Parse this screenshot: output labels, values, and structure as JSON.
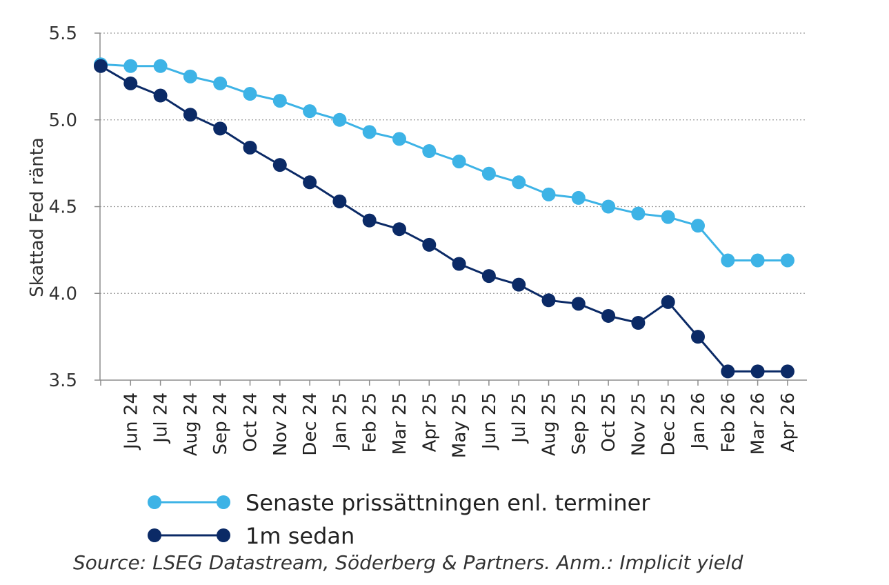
{
  "chart_data": {
    "type": "line",
    "title": "",
    "xlabel": "",
    "ylabel": "Skattad Fed ränta",
    "ylim": [
      3.5,
      5.5
    ],
    "yticks": [
      "5.5",
      "5.0",
      "4.5",
      "4.0",
      "3.5"
    ],
    "grid": true,
    "legend_position": "bottom",
    "categories": [
      "",
      "Jun 24",
      "Jul 24",
      "Aug 24",
      "Sep 24",
      "Oct 24",
      "Nov 24",
      "Dec 24",
      "Jan 25",
      "Feb 25",
      "Mar 25",
      "Apr 25",
      "May 25",
      "Jun 25",
      "Jul 25",
      "Aug 25",
      "Sep 25",
      "Oct 25",
      "Nov 25",
      "Dec 25",
      "Jan 26",
      "Feb 26",
      "Mar 26",
      "Apr 26"
    ],
    "series": [
      {
        "name": "Senaste prissättningen enl. terminer",
        "color": "#3db3e6",
        "values": [
          5.32,
          5.31,
          5.31,
          5.25,
          5.21,
          5.15,
          5.11,
          5.05,
          5.0,
          4.93,
          4.89,
          4.82,
          4.76,
          4.69,
          4.64,
          4.57,
          4.55,
          4.5,
          4.46,
          4.44,
          4.39,
          4.19,
          4.19,
          4.19
        ]
      },
      {
        "name": "1m sedan",
        "color": "#0b2a66",
        "values": [
          5.31,
          5.21,
          5.14,
          5.03,
          4.95,
          4.84,
          4.74,
          4.64,
          4.53,
          4.42,
          4.37,
          4.28,
          4.17,
          4.1,
          4.05,
          3.96,
          3.94,
          3.87,
          3.83,
          3.95,
          3.75,
          3.55,
          3.55,
          3.55
        ]
      }
    ]
  },
  "source_text": "Source: LSEG Datastream, Söderberg & Partners. Anm.: Implicit yield"
}
